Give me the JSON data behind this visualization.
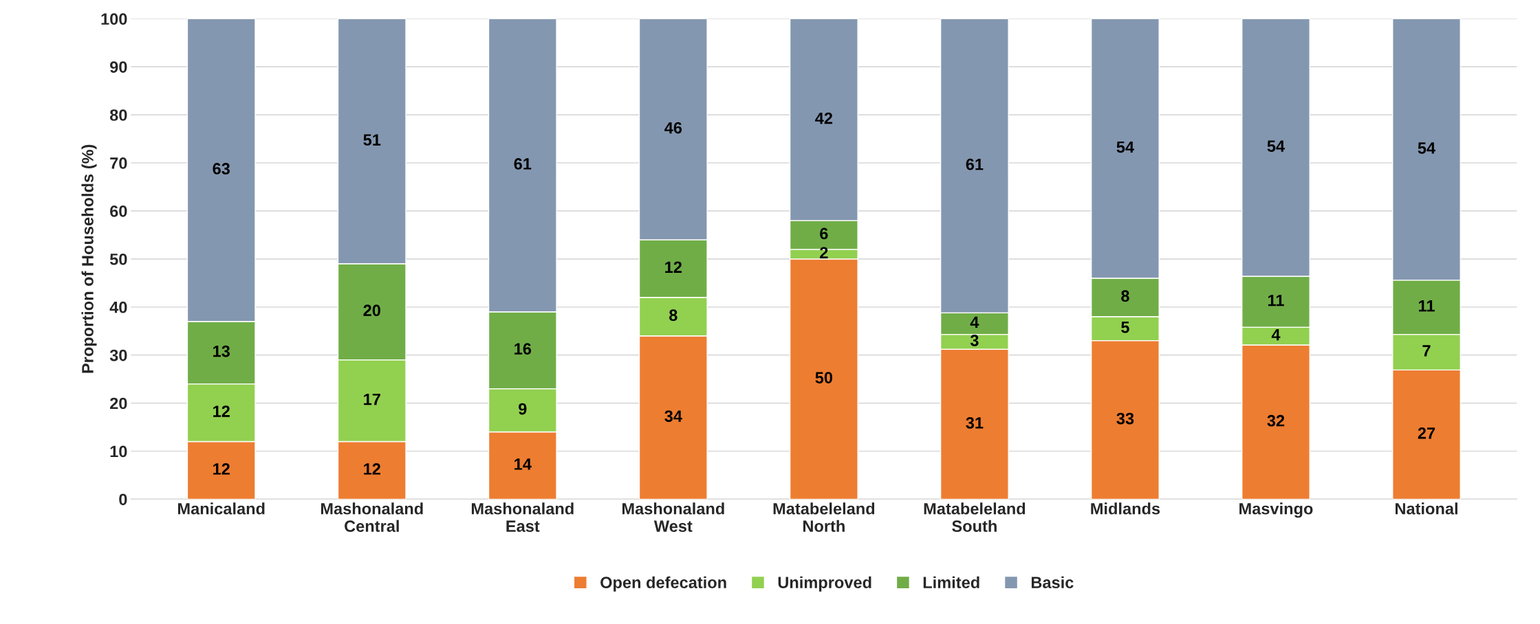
{
  "chart_data": {
    "type": "bar",
    "stacked": true,
    "ylabel": "Proportion of Households (%)",
    "categories": [
      "Manicaland",
      "Mashonaland\nCentral",
      "Mashonaland\nEast",
      "Mashonaland\nWest",
      "Matabeleland\nNorth",
      "Matabeleland\nSouth",
      "Midlands",
      "Masvingo",
      "National"
    ],
    "series": [
      {
        "name": "Open defecation",
        "color": "#ed7d31",
        "values": [
          12,
          12,
          14,
          34,
          50,
          31.2,
          33,
          32.1,
          26.9
        ],
        "value_labels": [
          "12",
          "12",
          "14",
          "34",
          "50",
          "31",
          "33",
          "32",
          "27"
        ]
      },
      {
        "name": "Unimproved",
        "color": "#92d050",
        "values": [
          12,
          17,
          9,
          8,
          2,
          3.1,
          5,
          3.7,
          7.4
        ],
        "value_labels": [
          "12",
          "17",
          "9",
          "8",
          "2",
          "3",
          "5",
          "4",
          "7"
        ]
      },
      {
        "name": "Limited",
        "color": "#70ad47",
        "values": [
          13,
          20,
          16,
          12,
          6,
          4.5,
          8,
          10.6,
          11.3
        ],
        "value_labels": [
          "13",
          "20",
          "16",
          "12",
          "6",
          "4",
          "8",
          "11",
          "11"
        ]
      },
      {
        "name": "Basic",
        "color": "#8497b0",
        "values": [
          63,
          51,
          61,
          46,
          42,
          61.2,
          54,
          53.6,
          54.4
        ],
        "value_labels": [
          "63",
          "51",
          "61",
          "46",
          "42",
          "61",
          "54",
          "54",
          "54"
        ]
      }
    ],
    "ylim": [
      0,
      100
    ],
    "yticks": [
      0,
      10,
      20,
      30,
      40,
      50,
      60,
      70,
      80,
      90,
      100
    ],
    "grid": "y",
    "legend": "bottom"
  }
}
